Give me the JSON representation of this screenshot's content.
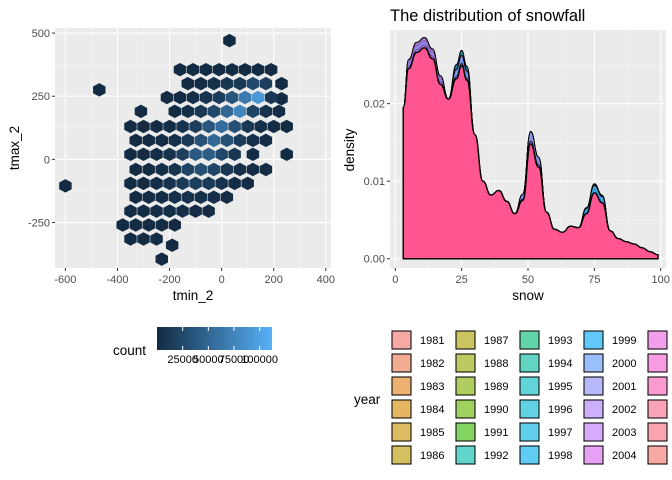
{
  "chart_data": [
    {
      "type": "heatmap",
      "subtype": "hexbin",
      "title": "",
      "xlabel": "tmin_2",
      "ylabel": "tmax_2",
      "xlim": [
        -640,
        420
      ],
      "ylim": [
        -430,
        520
      ],
      "x_ticks": [
        -600,
        -400,
        -200,
        0,
        200,
        400
      ],
      "y_ticks": [
        -250,
        0,
        250,
        500
      ],
      "x_tick_labels": [
        "-600",
        "-400",
        "-200",
        "0",
        "200",
        "400"
      ],
      "y_tick_labels": [
        "-250",
        "0",
        "250",
        "500"
      ],
      "grid": true,
      "legend": {
        "title": "count",
        "placement": "bottom",
        "tick_labels": [
          "25000",
          "50000",
          "75000",
          "100000"
        ],
        "range": [
          0,
          112000
        ],
        "color_low": "#132B43",
        "color_high": "#56B1F7"
      },
      "hex_width": 48,
      "points": [
        [
          30,
          470,
          1
        ],
        [
          -470,
          275,
          1
        ],
        [
          -600,
          -105,
          1
        ],
        [
          -190,
          -340,
          1
        ],
        [
          -230,
          -395,
          1
        ],
        [
          120,
          20,
          1
        ],
        [
          230,
          300,
          1
        ],
        [
          230,
          240,
          1
        ],
        [
          -160,
          355,
          1
        ],
        [
          -110,
          355,
          1
        ],
        [
          -60,
          355,
          1
        ],
        [
          -10,
          355,
          1
        ],
        [
          40,
          355,
          1
        ],
        [
          90,
          355,
          1
        ],
        [
          140,
          355,
          1
        ],
        [
          190,
          355,
          1
        ],
        [
          -130,
          300,
          1
        ],
        [
          -80,
          300,
          1
        ],
        [
          -30,
          300,
          4000
        ],
        [
          20,
          300,
          8000
        ],
        [
          70,
          300,
          12000
        ],
        [
          120,
          300,
          25000
        ],
        [
          170,
          300,
          15000
        ],
        [
          -210,
          245,
          1
        ],
        [
          -160,
          245,
          1
        ],
        [
          -110,
          245,
          3000
        ],
        [
          -60,
          245,
          6000
        ],
        [
          -10,
          245,
          14000
        ],
        [
          40,
          245,
          35000
        ],
        [
          90,
          245,
          65000
        ],
        [
          140,
          245,
          90000
        ],
        [
          190,
          245,
          10000
        ],
        [
          -310,
          190,
          1
        ],
        [
          -180,
          190,
          1
        ],
        [
          -130,
          190,
          4000
        ],
        [
          -80,
          190,
          10000
        ],
        [
          -30,
          190,
          25000
        ],
        [
          20,
          190,
          50000
        ],
        [
          70,
          190,
          75000
        ],
        [
          120,
          190,
          20000
        ],
        [
          170,
          190,
          5000
        ],
        [
          220,
          190,
          2000
        ],
        [
          -350,
          130,
          1
        ],
        [
          -300,
          130,
          1
        ],
        [
          -250,
          130,
          1
        ],
        [
          -200,
          130,
          2000
        ],
        [
          -150,
          130,
          6000
        ],
        [
          -100,
          130,
          15000
        ],
        [
          -50,
          130,
          35000
        ],
        [
          0,
          130,
          55000
        ],
        [
          50,
          130,
          30000
        ],
        [
          100,
          130,
          10000
        ],
        [
          150,
          130,
          3000
        ],
        [
          200,
          130,
          1000
        ],
        [
          250,
          130,
          1
        ],
        [
          -330,
          75,
          1
        ],
        [
          -280,
          75,
          1
        ],
        [
          -230,
          75,
          2000
        ],
        [
          -180,
          75,
          5000
        ],
        [
          -130,
          75,
          12000
        ],
        [
          -80,
          75,
          30000
        ],
        [
          -30,
          75,
          50000
        ],
        [
          20,
          75,
          32000
        ],
        [
          70,
          75,
          14000
        ],
        [
          120,
          75,
          5000
        ],
        [
          170,
          75,
          1000
        ],
        [
          -350,
          20,
          1
        ],
        [
          -300,
          20,
          1
        ],
        [
          -250,
          20,
          2000
        ],
        [
          -200,
          20,
          6000
        ],
        [
          -150,
          20,
          16000
        ],
        [
          -100,
          20,
          38000
        ],
        [
          -50,
          20,
          42000
        ],
        [
          0,
          20,
          24000
        ],
        [
          50,
          20,
          9000
        ],
        [
          250,
          20,
          1
        ],
        [
          -330,
          -40,
          1
        ],
        [
          -280,
          -40,
          1
        ],
        [
          -230,
          -40,
          3000
        ],
        [
          -180,
          -40,
          8000
        ],
        [
          -130,
          -40,
          20000
        ],
        [
          -80,
          -40,
          30000
        ],
        [
          -30,
          -40,
          22000
        ],
        [
          20,
          -40,
          10000
        ],
        [
          70,
          -40,
          3000
        ],
        [
          120,
          -40,
          1000
        ],
        [
          170,
          -40,
          1
        ],
        [
          -350,
          -95,
          1
        ],
        [
          -300,
          -95,
          1
        ],
        [
          -250,
          -95,
          2000
        ],
        [
          -200,
          -95,
          6000
        ],
        [
          -150,
          -95,
          12000
        ],
        [
          -100,
          -95,
          16000
        ],
        [
          -50,
          -95,
          12000
        ],
        [
          0,
          -95,
          6000
        ],
        [
          50,
          -95,
          2000
        ],
        [
          100,
          -95,
          1
        ],
        [
          -330,
          -150,
          1
        ],
        [
          -280,
          -150,
          1
        ],
        [
          -230,
          -150,
          2000
        ],
        [
          -180,
          -150,
          4000
        ],
        [
          -130,
          -150,
          6000
        ],
        [
          -80,
          -150,
          5000
        ],
        [
          -30,
          -150,
          3000
        ],
        [
          20,
          -150,
          1000
        ],
        [
          -350,
          -205,
          1
        ],
        [
          -300,
          -205,
          1
        ],
        [
          -250,
          -205,
          1000
        ],
        [
          -200,
          -205,
          2000
        ],
        [
          -150,
          -205,
          2000
        ],
        [
          -100,
          -205,
          1000
        ],
        [
          -50,
          -205,
          1
        ],
        [
          -380,
          -260,
          1
        ],
        [
          -330,
          -260,
          1
        ],
        [
          -280,
          -260,
          1
        ],
        [
          -230,
          -260,
          1
        ],
        [
          -180,
          -260,
          1
        ],
        [
          -350,
          -315,
          1
        ],
        [
          -300,
          -315,
          1
        ],
        [
          -250,
          -315,
          1
        ]
      ]
    },
    {
      "type": "area",
      "subtype": "density",
      "title": "The distribution of snowfall",
      "xlabel": "snow",
      "ylabel": "density",
      "xlim": [
        -2,
        102
      ],
      "ylim": [
        -0.0012,
        0.0295
      ],
      "x_ticks": [
        0,
        25,
        50,
        75,
        100
      ],
      "y_ticks": [
        0.0,
        0.01,
        0.02
      ],
      "x_tick_labels": [
        "0",
        "25",
        "50",
        "75",
        "100"
      ],
      "y_tick_labels": [
        "0.00",
        "0.01",
        "0.02"
      ],
      "grid": true,
      "x": [
        3,
        5,
        8,
        11,
        14,
        17,
        20,
        23,
        25,
        27,
        30,
        33,
        36,
        39,
        42,
        45,
        48,
        51,
        54,
        57,
        60,
        63,
        66,
        69,
        72,
        75,
        78,
        81,
        84,
        87,
        90,
        93,
        96,
        99
      ],
      "base_density": [
        0.0195,
        0.0245,
        0.0266,
        0.0272,
        0.0258,
        0.0225,
        0.0206,
        0.0232,
        0.0249,
        0.023,
        0.016,
        0.01,
        0.0082,
        0.0088,
        0.0074,
        0.0058,
        0.0075,
        0.0148,
        0.0118,
        0.006,
        0.0038,
        0.0034,
        0.0042,
        0.004,
        0.0058,
        0.0085,
        0.0072,
        0.0036,
        0.0026,
        0.0022,
        0.0019,
        0.0014,
        0.0009,
        0.0005
      ],
      "series_count": 24,
      "legend": {
        "title": "year",
        "placement": "bottom",
        "entries": [
          {
            "label": "1981",
            "color": "#F8766D"
          },
          {
            "label": "1982",
            "color": "#F27D52"
          },
          {
            "label": "1983",
            "color": "#E7861B"
          },
          {
            "label": "1984",
            "color": "#DB8E00"
          },
          {
            "label": "1985",
            "color": "#CE9700"
          },
          {
            "label": "1986",
            "color": "#BF9F00"
          },
          {
            "label": "1987",
            "color": "#AFA700"
          },
          {
            "label": "1988",
            "color": "#9CAD00"
          },
          {
            "label": "1989",
            "color": "#85B400"
          },
          {
            "label": "1990",
            "color": "#68BA00"
          },
          {
            "label": "1991",
            "color": "#3ABF00"
          },
          {
            "label": "1992",
            "color": "#00C0B0"
          },
          {
            "label": "1993",
            "color": "#00C277"
          },
          {
            "label": "1994",
            "color": "#00C1A0"
          },
          {
            "label": "1995",
            "color": "#00BFC4"
          },
          {
            "label": "1996",
            "color": "#00BCD8"
          },
          {
            "label": "1997",
            "color": "#00B8E7"
          },
          {
            "label": "1998",
            "color": "#00B2F3"
          },
          {
            "label": "1999",
            "color": "#00ABFD"
          },
          {
            "label": "2000",
            "color": "#619CFF"
          },
          {
            "label": "2001",
            "color": "#8F91FF"
          },
          {
            "label": "2002",
            "color": "#B385FF"
          },
          {
            "label": "2003",
            "color": "#C77CFF"
          },
          {
            "label": "2004",
            "color": "#E06CF3"
          },
          {
            "label": "",
            "color": "#F166E8"
          },
          {
            "label": "",
            "color": "#FB61D7"
          },
          {
            "label": "",
            "color": "#FF62BC"
          },
          {
            "label": "",
            "color": "#FF6C91"
          },
          {
            "label": "",
            "color": "#FF7285"
          },
          {
            "label": "",
            "color": "#F8766D"
          }
        ]
      },
      "front_color": "#FF5590"
    }
  ]
}
